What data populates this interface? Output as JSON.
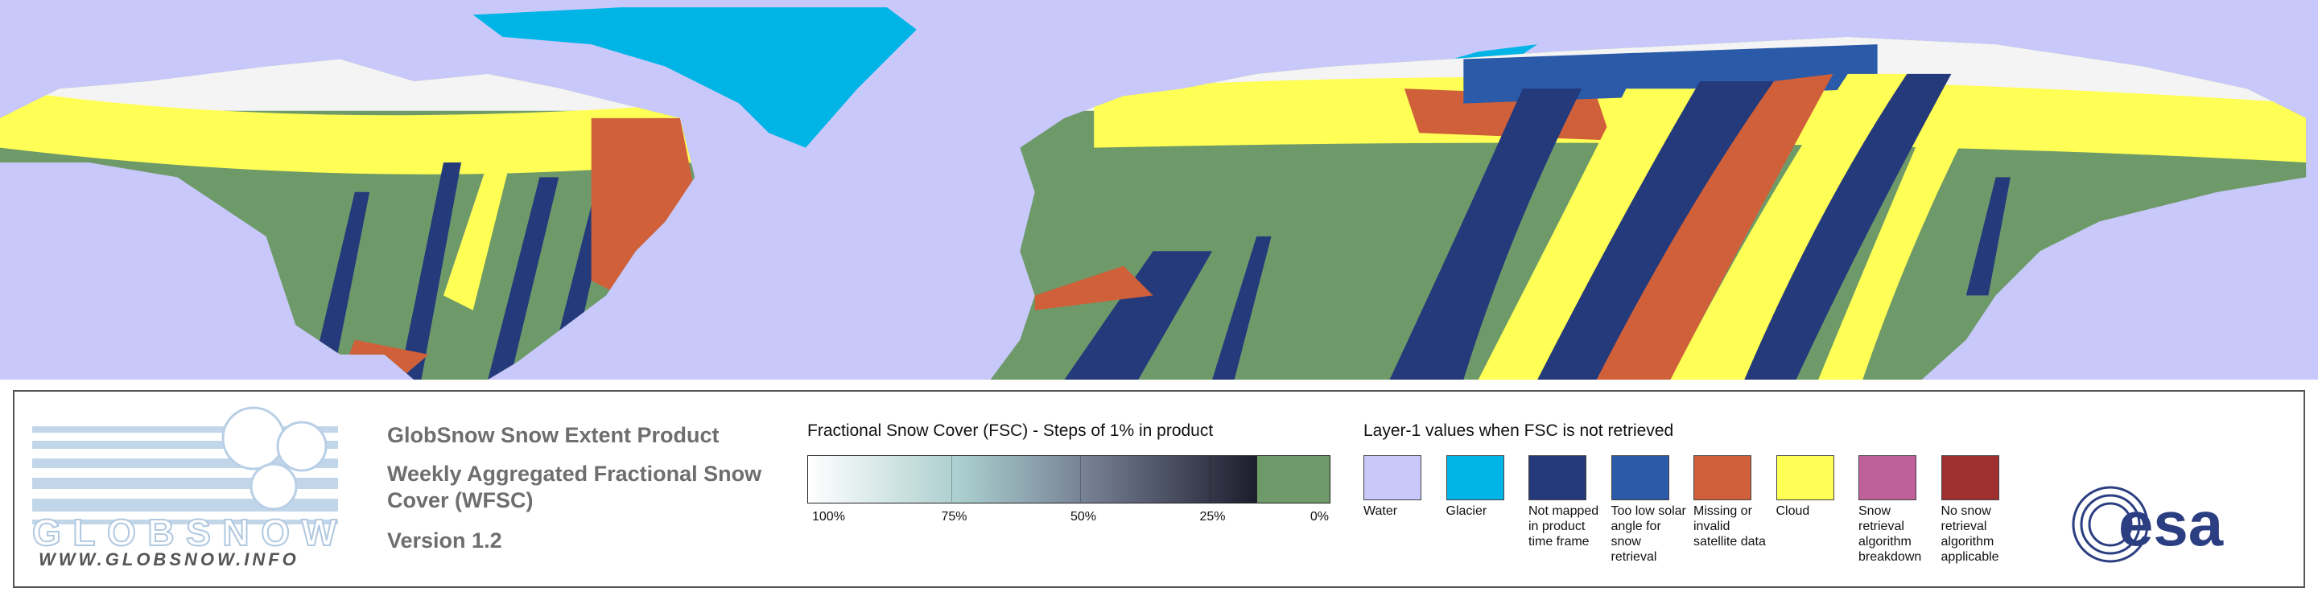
{
  "product": {
    "title": "GlobSnow Snow Extent Product",
    "subtitle": "Weekly Aggregated Fractional Snow Cover (WFSC)",
    "version": "Version 1.2"
  },
  "logo": {
    "name": "GLOBSNOW",
    "url": "WWW.GLOBSNOW.INFO"
  },
  "fsc_legend": {
    "title": "Fractional Snow Cover (FSC) - Steps of 1% in product",
    "labels": [
      "100%",
      "75%",
      "50%",
      "25%",
      "0%"
    ]
  },
  "layer1_legend": {
    "title": "Layer-1 values when FSC is not retrieved",
    "items": [
      {
        "label": "Water",
        "color": "#c8c8fa"
      },
      {
        "label": "Glacier",
        "color": "#00b4e6"
      },
      {
        "label": "Not mapped in product time frame",
        "color": "#243a7a"
      },
      {
        "label": "Too low solar angle for snow retrieval",
        "color": "#2a5aa8"
      },
      {
        "label": "Missing or invalid satellite data",
        "color": "#d0603a"
      },
      {
        "label": "Cloud",
        "color": "#ffff55"
      },
      {
        "label": "Snow retrieval algorithm breakdown",
        "color": "#c0609a"
      },
      {
        "label": "No snow retrieval algorithm applicable",
        "color": "#a03030"
      }
    ]
  },
  "esa_logo": "esa"
}
